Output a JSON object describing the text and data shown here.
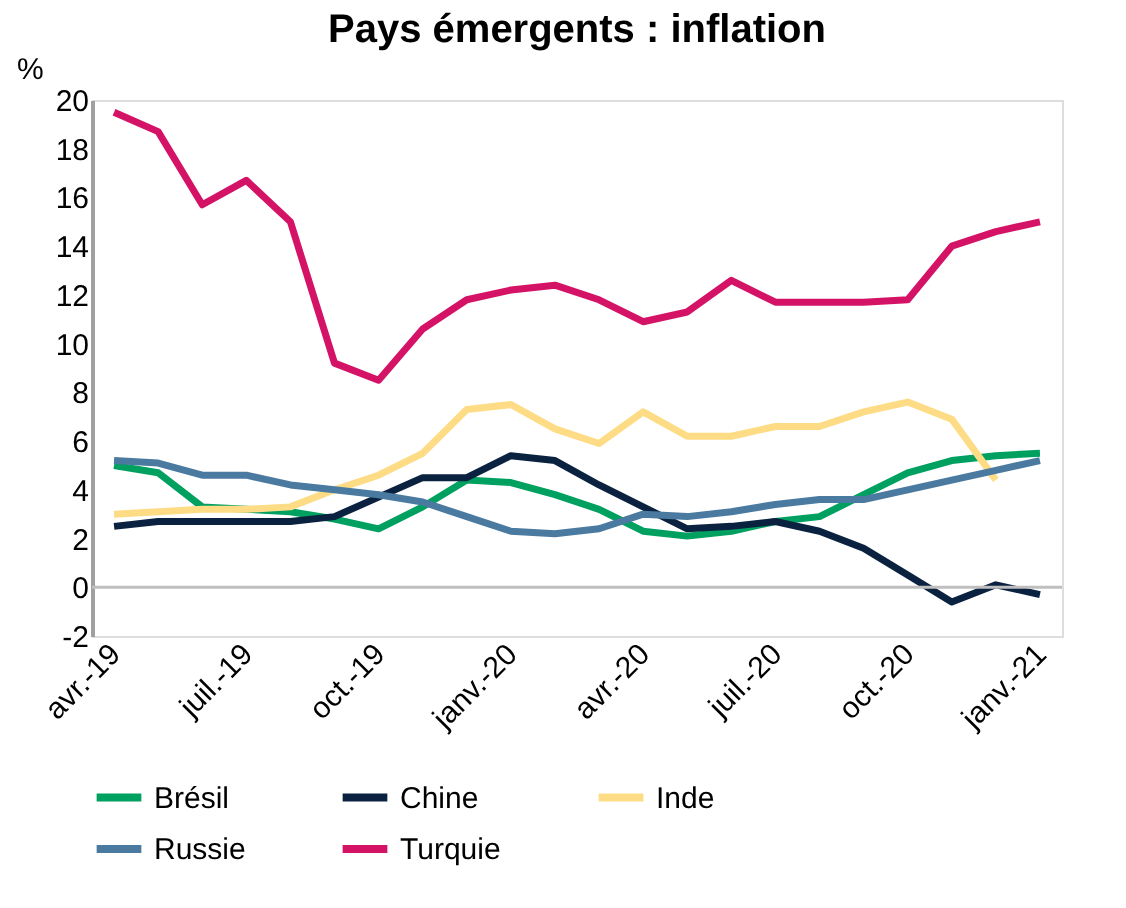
{
  "chart_data": {
    "type": "line",
    "title": "Pays émergents : inflation",
    "ylabel": "%",
    "categories": [
      "avr.-19",
      null,
      null,
      "juil.-19",
      null,
      null,
      "oct.-19",
      null,
      null,
      "janv.-20",
      null,
      null,
      "avr.-20",
      null,
      null,
      "juil.-20",
      null,
      null,
      "oct.-20",
      null,
      null,
      "janv.-21"
    ],
    "series": [
      {
        "name": "Brésil",
        "color": "#00a060",
        "values": [
          5.0,
          4.7,
          3.3,
          3.2,
          3.1,
          2.8,
          2.4,
          3.3,
          4.4,
          4.3,
          3.8,
          3.2,
          2.3,
          2.1,
          2.3,
          2.7,
          2.9,
          3.8,
          4.7,
          5.2,
          5.4,
          5.5
        ]
      },
      {
        "name": "Chine",
        "color": "#0a2240",
        "values": [
          2.5,
          2.7,
          2.7,
          2.7,
          2.7,
          2.9,
          3.7,
          4.5,
          4.5,
          5.4,
          5.2,
          4.2,
          3.3,
          2.4,
          2.5,
          2.7,
          2.3,
          1.6,
          0.5,
          -0.6,
          0.1,
          -0.3
        ]
      },
      {
        "name": "Inde",
        "color": "#fddc85",
        "values": [
          3.0,
          3.1,
          3.2,
          3.2,
          3.3,
          4.0,
          4.6,
          5.5,
          7.3,
          7.5,
          6.5,
          5.9,
          7.2,
          6.2,
          6.2,
          6.6,
          6.6,
          7.2,
          7.6,
          6.9,
          4.4,
          null
        ]
      },
      {
        "name": "Russie",
        "color": "#4a7aa0",
        "values": [
          5.2,
          5.1,
          4.6,
          4.6,
          4.2,
          4.0,
          3.8,
          3.5,
          2.9,
          2.3,
          2.2,
          2.4,
          3.0,
          2.9,
          3.1,
          3.4,
          3.6,
          3.6,
          4.0,
          4.4,
          4.8,
          5.2
        ]
      },
      {
        "name": "Turquie",
        "color": "#d41367",
        "values": [
          19.5,
          18.7,
          15.7,
          16.7,
          15.0,
          9.2,
          8.5,
          10.6,
          11.8,
          12.2,
          12.4,
          11.8,
          10.9,
          11.3,
          12.6,
          11.7,
          11.7,
          11.7,
          11.8,
          14.0,
          14.6,
          15.0
        ]
      }
    ],
    "ylim": [
      -2,
      20
    ],
    "yticks": [
      -2,
      0,
      2,
      4,
      6,
      8,
      10,
      12,
      14,
      16,
      18,
      20
    ],
    "ref_lines": [
      {
        "axis": "y",
        "value": 0,
        "color": "#bfbfbf"
      }
    ],
    "grid": false,
    "legend": "bottom",
    "marker": "none",
    "line_style": "solid"
  }
}
